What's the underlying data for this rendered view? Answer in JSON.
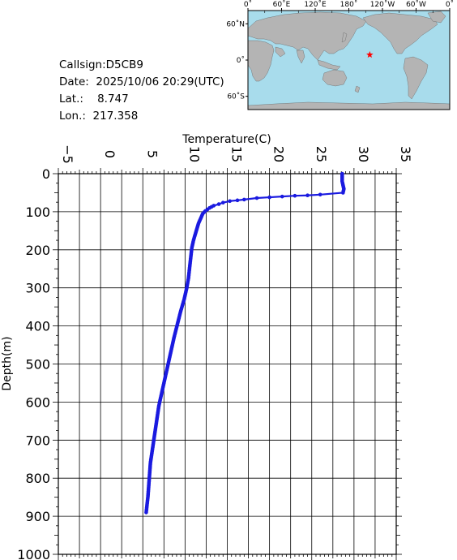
{
  "info": {
    "callsign": "Callsign:D5CB9",
    "date": "Date:  2025/10/06 20:29(UTC)",
    "lat": "Lat.:    8.747",
    "lon": "Lon.:  217.358"
  },
  "map": {
    "top_labels": [
      "0˚",
      "60˚E",
      "120˚E",
      "180˚",
      "120˚W",
      "60˚W",
      "0˚"
    ],
    "left_labels": [
      "60˚N",
      "0˚",
      "60˚S"
    ],
    "ocean_color": "#a8dcec",
    "land_color": "#b4b4b4",
    "marker": {
      "lat": 8.747,
      "lon": 217.358,
      "symbol": "star",
      "color": "#ff0000"
    }
  },
  "chart_data": {
    "type": "line",
    "title": "",
    "xlabel": "Temperature(C)",
    "ylabel": "Depth(m)",
    "xlim": [
      -5,
      35
    ],
    "ylim": [
      1000,
      0
    ],
    "x_ticks": [
      "-5",
      "0",
      "5",
      "10",
      "15",
      "20",
      "25",
      "30",
      "35"
    ],
    "y_ticks": [
      "0",
      "100",
      "200",
      "300",
      "400",
      "500",
      "600",
      "700",
      "800",
      "900",
      "1000"
    ],
    "grid": true,
    "series": [
      {
        "color": "#1a1ae0",
        "points": [
          [
            28.6,
            0
          ],
          [
            28.6,
            10
          ],
          [
            28.6,
            20
          ],
          [
            28.7,
            30
          ],
          [
            28.8,
            40
          ],
          [
            28.7,
            50
          ],
          [
            26.0,
            55
          ],
          [
            24.5,
            57
          ],
          [
            23.0,
            58
          ],
          [
            21.5,
            60
          ],
          [
            20.0,
            62
          ],
          [
            18.5,
            64
          ],
          [
            17.0,
            68
          ],
          [
            16.2,
            70
          ],
          [
            15.3,
            72
          ],
          [
            14.5,
            76
          ],
          [
            14.0,
            80
          ],
          [
            13.4,
            84
          ],
          [
            12.9,
            90
          ],
          [
            12.4,
            98
          ],
          [
            12.1,
            105
          ],
          [
            11.9,
            115
          ],
          [
            11.6,
            130
          ],
          [
            11.4,
            145
          ],
          [
            11.2,
            160
          ],
          [
            11.0,
            175
          ],
          [
            10.8,
            195
          ],
          [
            10.7,
            215
          ],
          [
            10.6,
            235
          ],
          [
            10.5,
            255
          ],
          [
            10.4,
            275
          ],
          [
            10.2,
            300
          ],
          [
            9.9,
            330
          ],
          [
            9.5,
            360
          ],
          [
            9.1,
            395
          ],
          [
            8.7,
            430
          ],
          [
            8.4,
            460
          ],
          [
            8.1,
            490
          ],
          [
            7.8,
            520
          ],
          [
            7.5,
            550
          ],
          [
            7.2,
            580
          ],
          [
            6.9,
            610
          ],
          [
            6.7,
            640
          ],
          [
            6.5,
            670
          ],
          [
            6.3,
            700
          ],
          [
            6.1,
            730
          ],
          [
            5.9,
            760
          ],
          [
            5.8,
            790
          ],
          [
            5.7,
            820
          ],
          [
            5.6,
            850
          ],
          [
            5.5,
            870
          ],
          [
            5.4,
            890
          ]
        ]
      }
    ]
  }
}
